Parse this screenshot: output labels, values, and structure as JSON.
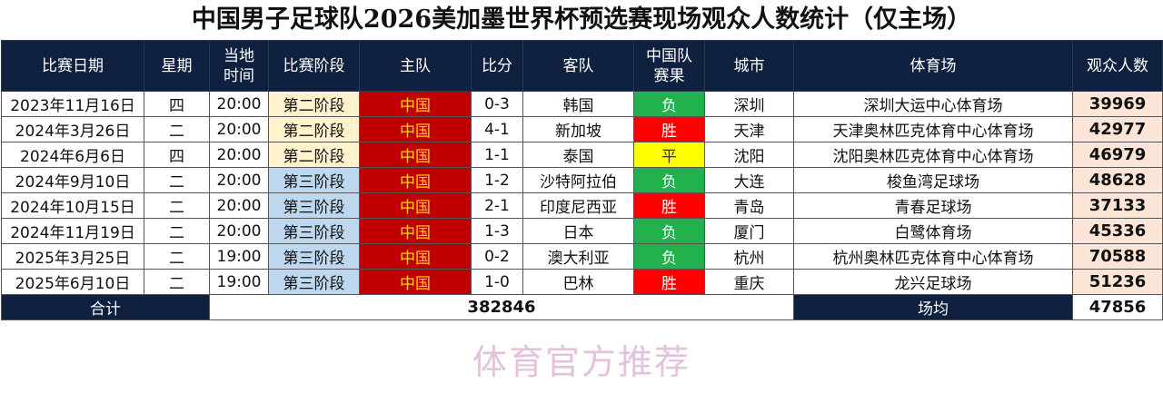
{
  "title": "中国男子足球队2026美加墨世界杯预选赛现场观众人数统计（仅主场）",
  "headers": [
    "比赛日期",
    "星期",
    "当地时间",
    "比赛阶段",
    "主队",
    "比分",
    "客队",
    "中国队赛果",
    "城市",
    "体育场",
    "观众人数"
  ],
  "header_lines": {
    "time": [
      "当地",
      "时间"
    ],
    "result": [
      "中国队",
      "赛果"
    ]
  },
  "colors": {
    "header_bg": "#0f213f",
    "phase2": "#fff2cc",
    "phase3": "#bdd7ee",
    "home_bg": "#c00000",
    "home_text": "#ffd700",
    "loss": "#22b14c",
    "win": "#ff0000",
    "draw": "#ffff00",
    "attendance_bg": "#fce4d6"
  },
  "rows": [
    [
      "2023年11月16日",
      "四",
      "20:00",
      "第二阶段",
      "中国",
      "0-3",
      "韩国",
      "负",
      "深圳",
      "深圳大运中心体育场",
      "39969"
    ],
    [
      "2024年3月26日",
      "二",
      "20:00",
      "第二阶段",
      "中国",
      "4-1",
      "新加坡",
      "胜",
      "天津",
      "天津奥林匹克体育中心体育场",
      "42977"
    ],
    [
      "2024年6月6日",
      "四",
      "20:00",
      "第二阶段",
      "中国",
      "1-1",
      "泰国",
      "平",
      "沈阳",
      "沈阳奥林匹克体育中心体育场",
      "46979"
    ],
    [
      "2024年9月10日",
      "二",
      "20:00",
      "第三阶段",
      "中国",
      "1-2",
      "沙特阿拉伯",
      "负",
      "大连",
      "梭鱼湾足球场",
      "48628"
    ],
    [
      "2024年10月15日",
      "二",
      "20:00",
      "第三阶段",
      "中国",
      "2-1",
      "印度尼西亚",
      "胜",
      "青岛",
      "青春足球场",
      "37133"
    ],
    [
      "2024年11月19日",
      "二",
      "20:00",
      "第三阶段",
      "中国",
      "1-3",
      "日本",
      "负",
      "厦门",
      "白鹭体育场",
      "45336"
    ],
    [
      "2025年3月25日",
      "二",
      "19:00",
      "第三阶段",
      "中国",
      "0-2",
      "澳大利亚",
      "负",
      "杭州",
      "杭州奥林匹克体育中心体育场",
      "70588"
    ],
    [
      "2025年6月10日",
      "二",
      "19:00",
      "第三阶段",
      "中国",
      "1-0",
      "巴林",
      "胜",
      "重庆",
      "龙兴足球场",
      "51236"
    ]
  ],
  "footer": {
    "total_label": "合计",
    "total": "382846",
    "avg_label": "场均",
    "avg": "47856"
  },
  "watermark": "体育官方推荐"
}
